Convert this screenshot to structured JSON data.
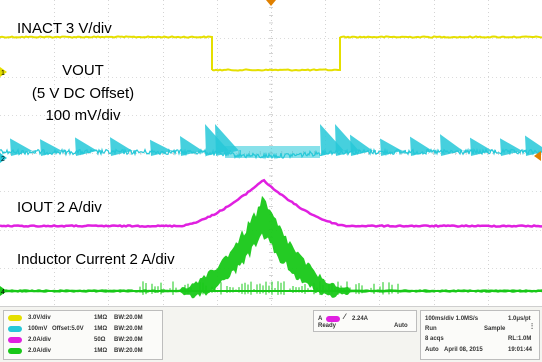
{
  "colors": {
    "ch1": "#e5df00",
    "ch2": "#26c8d8",
    "ch3": "#e020e0",
    "ch4": "#18c818",
    "grid": "#b7b7b7"
  },
  "labels": {
    "inact": "INACT 3 V/div",
    "vout_line1": "VOUT",
    "vout_line2": "(5 V DC Offset)",
    "vout_line3": "100 mV/div",
    "iout": "IOUT 2 A/div",
    "inductor": "Inductor Current 2 A/div"
  },
  "markers": {
    "ch1": "1",
    "ch2": "2",
    "ch4": "4"
  },
  "channels": [
    {
      "scale": "3.0V/div",
      "offset": "",
      "impedance": "1MΩ",
      "bw": "BW:20.0M"
    },
    {
      "scale": "100mV",
      "offset": "Offset:5.0V",
      "impedance": "1MΩ",
      "bw": "BW:20.0M"
    },
    {
      "scale": "2.0A/div",
      "offset": "",
      "impedance": "50Ω",
      "bw": "BW:20.0M"
    },
    {
      "scale": "2.0A/div",
      "offset": "",
      "impedance": "1MΩ",
      "bw": "BW:20.0M"
    }
  ],
  "trigger": {
    "channel": "A",
    "level": "2.24A",
    "state": "Ready",
    "mode": "Auto"
  },
  "acq": {
    "timebase": "100ms/div 1.0MS/s",
    "resolution": "1.0μs/pt",
    "run": "Run",
    "sample": "Sample",
    "acqs": "8 acqs",
    "rl": "RL:1.0M",
    "date_mode": "Auto",
    "date": "April 08, 2015",
    "time": "19:01:44"
  }
}
